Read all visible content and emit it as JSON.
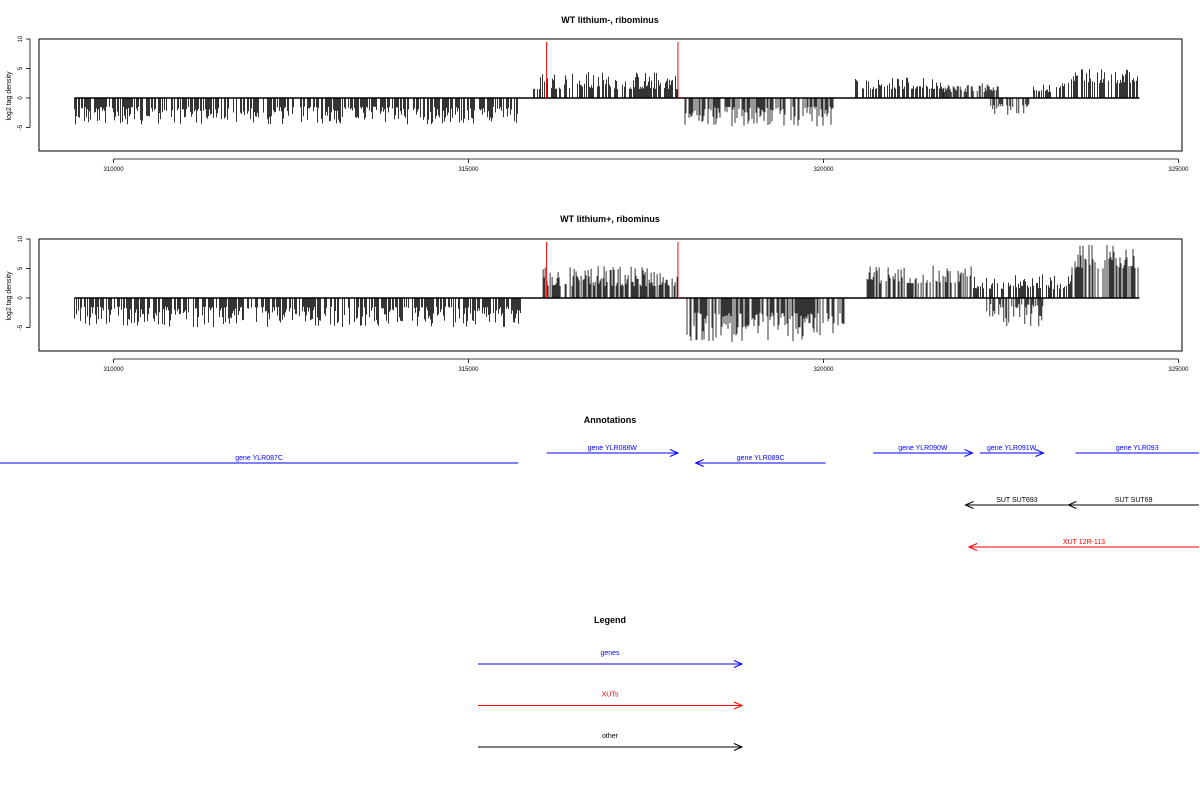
{
  "colors": {
    "gene": "#0000ff",
    "xut": "#ff0000",
    "other": "#000000",
    "marker": "#ff0000",
    "bar": "#000000"
  },
  "chart_data": [
    {
      "type": "bar",
      "title": "WT lithium-, ribominus",
      "ylabel": "log2 tag density",
      "xlim": [
        308950,
        325050
      ],
      "ylim": [
        -9,
        10
      ],
      "xticks": [
        310000,
        315000,
        320000,
        325000
      ],
      "yticks": [
        -5,
        0,
        5,
        10
      ],
      "data_range": [
        309450,
        324450
      ],
      "marker_lines": [
        316100,
        317950
      ],
      "marker_height": 9.5,
      "series": [
        {
          "segments": [
            {
              "x": [
                309450,
                315700
              ],
              "sign": -1,
              "low": 1.5,
              "high": 4.5
            },
            {
              "x": [
                315900,
                317950
              ],
              "sign": 1,
              "low": 1.5,
              "high": 4.5
            },
            {
              "x": [
                318050,
                320150
              ],
              "sign": -1,
              "low": 1.5,
              "high": 5
            },
            {
              "x": [
                320450,
                321700
              ],
              "sign": 1,
              "low": 1.5,
              "high": 3.5
            },
            {
              "x": [
                321700,
                322500
              ],
              "sign": 1,
              "low": 1,
              "high": 2.5
            },
            {
              "x": [
                322300,
                322900
              ],
              "sign": -1,
              "low": 1,
              "high": 3
            },
            {
              "x": [
                322900,
                323400
              ],
              "sign": 1,
              "low": 1,
              "high": 2.5
            },
            {
              "x": [
                323450,
                324450
              ],
              "sign": 1,
              "low": 2.5,
              "high": 5
            }
          ]
        }
      ]
    },
    {
      "type": "bar",
      "title": "WT lithium+, ribominus",
      "ylabel": "log2 tag density",
      "xlim": [
        308950,
        325050
      ],
      "ylim": [
        -9,
        10
      ],
      "xticks": [
        310000,
        315000,
        320000,
        325000
      ],
      "yticks": [
        -5,
        0,
        5,
        10
      ],
      "data_range": [
        309450,
        324450
      ],
      "marker_lines": [
        316100,
        317950
      ],
      "marker_height": 9.5,
      "series": [
        {
          "segments": [
            {
              "x": [
                309450,
                315750
              ],
              "sign": -1,
              "low": 1.5,
              "high": 5
            },
            {
              "x": [
                316050,
                317950
              ],
              "sign": 1,
              "low": 2,
              "high": 5.5
            },
            {
              "x": [
                318050,
                320300
              ],
              "sign": -1,
              "low": 2.5,
              "high": 7.5
            },
            {
              "x": [
                320600,
                322100
              ],
              "sign": 1,
              "low": 2.5,
              "high": 5.5
            },
            {
              "x": [
                322100,
                323500
              ],
              "sign": 1,
              "low": 1.5,
              "high": 4
            },
            {
              "x": [
                322300,
                323100
              ],
              "sign": -1,
              "low": 1,
              "high": 5
            },
            {
              "x": [
                323500,
                324450
              ],
              "sign": 1,
              "low": 5,
              "high": 9
            }
          ]
        }
      ]
    }
  ],
  "annotations": {
    "title": "Annotations",
    "genes": [
      {
        "label": "gene YLR087C",
        "start": 307000,
        "end": 315700,
        "strand": "-"
      },
      {
        "label": "gene YLR088W",
        "start": 316100,
        "end": 317950,
        "strand": "+"
      },
      {
        "label": "gene YLR089C",
        "start": 318200,
        "end": 320030,
        "strand": "-"
      },
      {
        "label": "gene YLR090W",
        "start": 320700,
        "end": 322100,
        "strand": "+"
      },
      {
        "label": "gene YLR091W",
        "start": 322200,
        "end": 323100,
        "strand": "+"
      },
      {
        "label": "gene YLR093",
        "start": 323550,
        "end": 326500,
        "strand": "+"
      }
    ],
    "suts": [
      {
        "label": "SUT SUT693",
        "start": 322000,
        "end": 323450,
        "strand": "-"
      },
      {
        "label": "SUT SUT69",
        "start": 323450,
        "end": 326500,
        "strand": "-"
      }
    ],
    "xuts": [
      {
        "label": "XUT 12R-113",
        "start": 322050,
        "end": 326500,
        "strand": "-"
      }
    ]
  },
  "legend": {
    "title": "Legend",
    "items": [
      {
        "label": "genes",
        "kind": "gene"
      },
      {
        "label": "XUTs",
        "kind": "xut"
      },
      {
        "label": "other",
        "kind": "other"
      }
    ]
  }
}
